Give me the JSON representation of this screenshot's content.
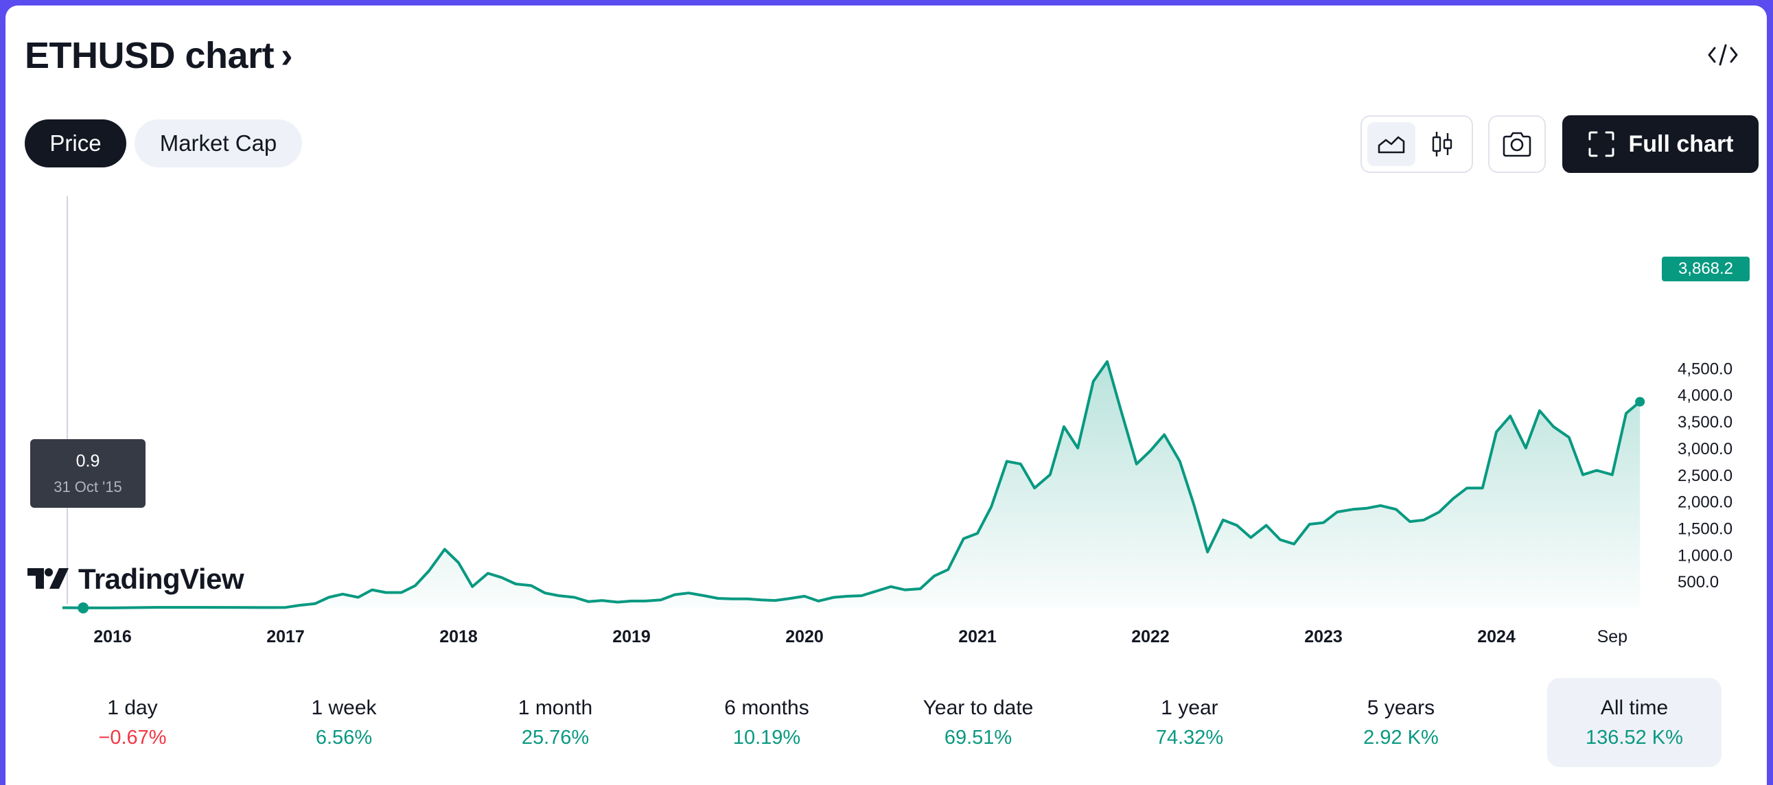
{
  "header": {
    "title": "ETHUSD chart",
    "chevron": "›",
    "embed_icon": "code-icon"
  },
  "tabs": [
    {
      "label": "Price",
      "active": true
    },
    {
      "label": "Market Cap",
      "active": false
    }
  ],
  "toolbar": {
    "area_icon": "area-chart-icon",
    "candle_icon": "candlestick-icon",
    "camera_icon": "camera-icon",
    "full_chart_label": "Full chart",
    "full_chart_icon": "fullscreen-icon"
  },
  "tooltip": {
    "value": "0.9",
    "date": "31 Oct '15"
  },
  "branding": {
    "logo_text": "TradingView"
  },
  "last_price_label": "3,868.2",
  "colors": {
    "line": "#089981",
    "down": "#f23645",
    "dark": "#131722",
    "accent_bg": "#5b4cf0"
  },
  "chart_data": {
    "type": "area",
    "title": "",
    "xlabel": "",
    "ylabel": "",
    "ylim": [
      0,
      4700
    ],
    "y_ticks": [
      500,
      1000,
      1500,
      2000,
      2500,
      3000,
      3500,
      4000,
      4500
    ],
    "y_tick_labels": [
      "500.0",
      "1,000.0",
      "1,500.0",
      "2,000.0",
      "2,500.0",
      "3,000.0",
      "3,500.0",
      "4,000.0",
      "4,500.0"
    ],
    "x_tick_labels": [
      {
        "label": "2016",
        "t": 2016.0
      },
      {
        "label": "2017",
        "t": 2017.0
      },
      {
        "label": "2018",
        "t": 2018.0
      },
      {
        "label": "2019",
        "t": 2019.0
      },
      {
        "label": "2020",
        "t": 2020.0
      },
      {
        "label": "2021",
        "t": 2021.0
      },
      {
        "label": "2022",
        "t": 2022.0
      },
      {
        "label": "2023",
        "t": 2023.0
      },
      {
        "label": "2024",
        "t": 2024.0
      },
      {
        "label": "Sep",
        "t": 2024.67
      }
    ],
    "series": [
      {
        "points": [
          [
            2015.71,
            5
          ],
          [
            2015.83,
            0.9
          ],
          [
            2016.0,
            1
          ],
          [
            2016.25,
            11
          ],
          [
            2016.5,
            12
          ],
          [
            2016.75,
            10
          ],
          [
            2016.92,
            8
          ],
          [
            2017.0,
            10
          ],
          [
            2017.08,
            50
          ],
          [
            2017.17,
            80
          ],
          [
            2017.25,
            200
          ],
          [
            2017.33,
            260
          ],
          [
            2017.42,
            200
          ],
          [
            2017.5,
            340
          ],
          [
            2017.58,
            290
          ],
          [
            2017.67,
            290
          ],
          [
            2017.75,
            420
          ],
          [
            2017.83,
            700
          ],
          [
            2017.92,
            1100
          ],
          [
            2018.0,
            850
          ],
          [
            2018.08,
            400
          ],
          [
            2018.17,
            650
          ],
          [
            2018.25,
            570
          ],
          [
            2018.33,
            450
          ],
          [
            2018.42,
            420
          ],
          [
            2018.5,
            280
          ],
          [
            2018.58,
            230
          ],
          [
            2018.67,
            200
          ],
          [
            2018.75,
            120
          ],
          [
            2018.83,
            140
          ],
          [
            2018.92,
            110
          ],
          [
            2019.0,
            130
          ],
          [
            2019.08,
            130
          ],
          [
            2019.17,
            150
          ],
          [
            2019.25,
            250
          ],
          [
            2019.33,
            280
          ],
          [
            2019.42,
            230
          ],
          [
            2019.5,
            180
          ],
          [
            2019.58,
            170
          ],
          [
            2019.67,
            170
          ],
          [
            2019.75,
            150
          ],
          [
            2019.83,
            140
          ],
          [
            2019.92,
            180
          ],
          [
            2020.0,
            220
          ],
          [
            2020.08,
            130
          ],
          [
            2020.17,
            200
          ],
          [
            2020.25,
            220
          ],
          [
            2020.33,
            230
          ],
          [
            2020.42,
            320
          ],
          [
            2020.5,
            400
          ],
          [
            2020.58,
            340
          ],
          [
            2020.67,
            360
          ],
          [
            2020.75,
            600
          ],
          [
            2020.83,
            720
          ],
          [
            2020.92,
            1300
          ],
          [
            2021.0,
            1400
          ],
          [
            2021.08,
            1900
          ],
          [
            2021.17,
            2750
          ],
          [
            2021.25,
            2700
          ],
          [
            2021.33,
            2250
          ],
          [
            2021.42,
            2500
          ],
          [
            2021.5,
            3400
          ],
          [
            2021.58,
            3000
          ],
          [
            2021.67,
            4250
          ],
          [
            2021.75,
            4620
          ],
          [
            2021.83,
            3700
          ],
          [
            2021.92,
            2700
          ],
          [
            2022.0,
            2950
          ],
          [
            2022.08,
            3250
          ],
          [
            2022.17,
            2750
          ],
          [
            2022.25,
            1950
          ],
          [
            2022.33,
            1050
          ],
          [
            2022.42,
            1650
          ],
          [
            2022.5,
            1550
          ],
          [
            2022.58,
            1320
          ],
          [
            2022.67,
            1550
          ],
          [
            2022.75,
            1280
          ],
          [
            2022.83,
            1200
          ],
          [
            2022.92,
            1570
          ],
          [
            2023.0,
            1600
          ],
          [
            2023.08,
            1800
          ],
          [
            2023.17,
            1850
          ],
          [
            2023.25,
            1870
          ],
          [
            2023.33,
            1920
          ],
          [
            2023.42,
            1850
          ],
          [
            2023.5,
            1620
          ],
          [
            2023.58,
            1650
          ],
          [
            2023.67,
            1800
          ],
          [
            2023.75,
            2050
          ],
          [
            2023.83,
            2250
          ],
          [
            2023.92,
            2250
          ],
          [
            2024.0,
            3300
          ],
          [
            2024.08,
            3600
          ],
          [
            2024.17,
            3000
          ],
          [
            2024.25,
            3700
          ],
          [
            2024.33,
            3400
          ],
          [
            2024.42,
            3200
          ],
          [
            2024.5,
            2500
          ],
          [
            2024.58,
            2580
          ],
          [
            2024.67,
            2500
          ],
          [
            2024.75,
            3650
          ],
          [
            2024.83,
            3868.2
          ]
        ]
      }
    ]
  },
  "periods": [
    {
      "label": "1 day",
      "value": "−0.67%",
      "dir": "down",
      "active": false
    },
    {
      "label": "1 week",
      "value": "6.56%",
      "dir": "up",
      "active": false
    },
    {
      "label": "1 month",
      "value": "25.76%",
      "dir": "up",
      "active": false
    },
    {
      "label": "6 months",
      "value": "10.19%",
      "dir": "up",
      "active": false
    },
    {
      "label": "Year to date",
      "value": "69.51%",
      "dir": "up",
      "active": false
    },
    {
      "label": "1 year",
      "value": "74.32%",
      "dir": "up",
      "active": false
    },
    {
      "label": "5 years",
      "value": "2.92 K%",
      "dir": "up",
      "active": false
    },
    {
      "label": "All time",
      "value": "136.52 K%",
      "dir": "up",
      "active": true
    }
  ]
}
